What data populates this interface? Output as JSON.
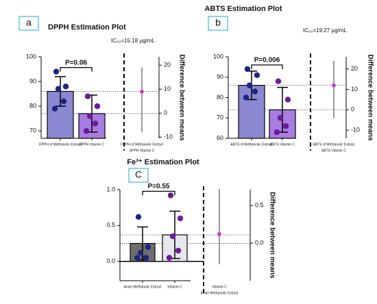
{
  "chart_data": [
    {
      "type": "bar",
      "panel": "a",
      "title": "DPPH Estimation Plot",
      "annotation": "IC₅₀=15.18 μg/mL",
      "p_label": "P=0.06",
      "y2label": "Difference between means",
      "categories": [
        "DPPH of Methanolic Extract",
        "DPPH Vitamin C"
      ],
      "values": [
        86,
        77
      ],
      "sd": [
        6,
        7.5
      ],
      "colors": [
        "#8b88d2",
        "#a87ce0"
      ],
      "point_colors": [
        "#1b2680",
        "#6a1b9a"
      ],
      "points": [
        [
          94,
          88,
          87,
          82,
          79
        ],
        [
          84,
          80,
          76,
          73,
          70
        ]
      ],
      "difference": {
        "labels": [
          "DPPH of Methanolic Extract",
          "DPPH Vitamin C"
        ],
        "value": 9,
        "ci": [
          -8,
          19
        ],
        "color": "#cc33cc"
      },
      "ylim": [
        67,
        100
      ],
      "yticks": [
        70,
        80,
        90,
        100
      ],
      "y2lim": [
        -10.5,
        23.5
      ],
      "y2ticks": [
        -10,
        0,
        10,
        20
      ]
    },
    {
      "type": "bar",
      "panel": "b",
      "title": "ABTS Estimation Plot",
      "annotation": "IC₅₀=19.27 μg/mL",
      "p_label": "P=0.006",
      "y2label": "Difference between means",
      "categories": [
        "ABTS of Methanolic Extract",
        "ABTS Vitamin C"
      ],
      "values": [
        86,
        74
      ],
      "sd": [
        7,
        11
      ],
      "colors": [
        "#8b88d2",
        "#a87ce0"
      ],
      "point_colors": [
        "#1b2680",
        "#6a1b9a"
      ],
      "points": [
        [
          94,
          91,
          86,
          83,
          80
        ],
        [
          88,
          79,
          70,
          66,
          63
        ]
      ],
      "difference": {
        "labels": [
          "ABTS of Methanolic Extract",
          "ABTS Vitamin C"
        ],
        "value": 12,
        "ci": [
          -4,
          24
        ],
        "color": "#cc33cc"
      },
      "ylim": [
        60,
        100
      ],
      "yticks": [
        60,
        70,
        80,
        90,
        100
      ],
      "y2lim": [
        -14,
        26
      ],
      "y2ticks": [
        -10,
        0,
        10,
        20
      ]
    },
    {
      "type": "bar",
      "panel": "C",
      "title": "Fe³⁺ Estimation Plot",
      "p_label": "P=0.55",
      "y2label": "Difference between means",
      "categories": [
        "Anise Methanolic Extract",
        "Vitamin C"
      ],
      "values": [
        0.25,
        0.37
      ],
      "sd": [
        0.23,
        0.33
      ],
      "colors": [
        "#6e6e6e",
        "#e6e6ec"
      ],
      "point_colors": [
        "#1b2680",
        "#6a1b9a"
      ],
      "points": [
        [
          0.62,
          0.2,
          0.12,
          0.05,
          0.05
        ],
        [
          0.92,
          0.6,
          0.35,
          0.15,
          0.05
        ]
      ],
      "difference": {
        "labels": [
          "Vitamin C",
          "Anise Methanolic Extract"
        ],
        "value": 0.12,
        "ci": [
          -0.28,
          0.72
        ],
        "color": "#cc33cc"
      },
      "ylim": [
        -0.27,
        1
      ],
      "yticks": [
        {
          "value": 0,
          "label": "0.0"
        },
        {
          "value": 0.5,
          "label": "0.5"
        },
        {
          "value": 1,
          "label": "1.0"
        }
      ],
      "y2lim": [
        -0.5,
        0.71
      ],
      "y2ticks": [
        {
          "value": 0,
          "label": "0.0"
        },
        {
          "value": 0.5,
          "label": "0.5"
        }
      ]
    }
  ]
}
